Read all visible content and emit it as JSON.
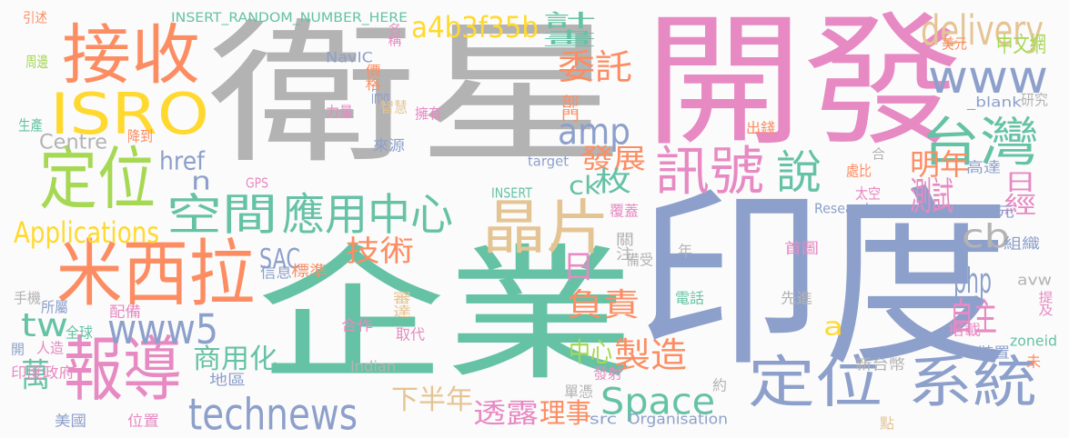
{
  "words": [
    {
      "text": "衛星",
      "color": "#b3b3b3"
    },
    {
      "text": "開發",
      "color": "#e78ac3"
    },
    {
      "text": "企業",
      "color": "#66c2a5"
    },
    {
      "text": "印度",
      "color": "#8da0cb"
    },
    {
      "text": "接收",
      "color": "#fc8d62"
    },
    {
      "text": "ISRO",
      "color": "#ffd92f"
    },
    {
      "text": "定位",
      "color": "#a6d854"
    },
    {
      "text": "米西拉",
      "color": "#fc8d62"
    },
    {
      "text": "報導",
      "color": "#e78ac3"
    },
    {
      "text": "晶片",
      "color": "#e5c494"
    },
    {
      "text": "空間",
      "color": "#66c2a5"
    },
    {
      "text": "應用中心",
      "color": "#66c2a5"
    },
    {
      "text": "訊號",
      "color": "#e78ac3"
    },
    {
      "text": "說",
      "color": "#66c2a5"
    },
    {
      "text": "台灣",
      "color": "#66c2a5"
    },
    {
      "text": "定位",
      "color": "#8da0cb"
    },
    {
      "text": "系統",
      "color": "#8da0cb"
    },
    {
      "text": "www5",
      "color": "#8da0cb"
    },
    {
      "text": "technews",
      "color": "#8da0cb"
    },
    {
      "text": "Space",
      "color": "#66c2a5"
    },
    {
      "text": "delivery",
      "color": "#e5c494"
    },
    {
      "text": "www",
      "color": "#8da0cb"
    },
    {
      "text": "a4b3f35b",
      "color": "#ffd92f"
    },
    {
      "text": "委託",
      "color": "#fc8d62"
    },
    {
      "text": "amp",
      "color": "#8da0cb"
    },
    {
      "text": "計畫",
      "color": "#66c2a5"
    },
    {
      "text": "發展",
      "color": "#fc8d62"
    },
    {
      "text": "技術",
      "color": "#fc8d62"
    },
    {
      "text": "Applications",
      "color": "#ffd92f"
    },
    {
      "text": "Centre",
      "color": "#b3b3b3"
    },
    {
      "text": "href",
      "color": "#8da0cb"
    },
    {
      "text": "n",
      "color": "#8da0cb"
    },
    {
      "text": "tw",
      "color": "#66c2a5"
    },
    {
      "text": "SAC",
      "color": "#8da0cb"
    },
    {
      "text": "商用化",
      "color": "#66c2a5"
    },
    {
      "text": "萬",
      "color": "#66c2a5"
    },
    {
      "text": "負責",
      "color": "#fc8d62"
    },
    {
      "text": "製造",
      "color": "#fc8d62"
    },
    {
      "text": "中心",
      "color": "#a6d854"
    },
    {
      "text": "php",
      "color": "#8da0cb"
    },
    {
      "text": "自主",
      "color": "#e78ac3"
    },
    {
      "text": "測試",
      "color": "#e78ac3"
    },
    {
      "text": "cb",
      "color": "#b3b3b3"
    },
    {
      "text": "日經",
      "color": "#e78ac3"
    },
    {
      "text": "明年",
      "color": "#fc8d62"
    },
    {
      "text": "枚",
      "color": "#66c2a5"
    },
    {
      "text": "ck",
      "color": "#66c2a5"
    },
    {
      "text": "日",
      "color": "#e78ac3"
    },
    {
      "text": "下半年",
      "color": "#e5c494"
    },
    {
      "text": "透露",
      "color": "#e78ac3"
    },
    {
      "text": "理事",
      "color": "#fc8d62"
    },
    {
      "text": "中文網",
      "color": "#a6d854"
    },
    {
      "text": "a",
      "color": "#ffd92f"
    },
    {
      "text": "INSERT_RANDOM_NUMBER_HERE",
      "color": "#66c2a5"
    },
    {
      "text": "引述",
      "color": "#fc8d62"
    },
    {
      "text": "周邊",
      "color": "#a6d854"
    },
    {
      "text": "生產",
      "color": "#66c2a5"
    },
    {
      "text": "降到",
      "color": "#fc8d62"
    },
    {
      "text": "NavIC",
      "color": "#8da0cb"
    },
    {
      "text": "價格",
      "color": "#fc8d62"
    },
    {
      "text": "img",
      "color": "#8da0cb"
    },
    {
      "text": "智慧",
      "color": "#e5c494"
    },
    {
      "text": "名稱",
      "color": "#e78ac3"
    },
    {
      "text": "力量",
      "color": "#e78ac3"
    },
    {
      "text": "擁有",
      "color": "#e78ac3"
    },
    {
      "text": "來源",
      "color": "#8da0cb"
    },
    {
      "text": "GPS",
      "color": "#e78ac3"
    },
    {
      "text": "target",
      "color": "#8da0cb"
    },
    {
      "text": "INSERT",
      "color": "#66c2a5"
    },
    {
      "text": "部門",
      "color": "#fc8d62"
    },
    {
      "text": "美元",
      "color": "#fc8d62"
    },
    {
      "text": "_blank",
      "color": "#8da0cb"
    },
    {
      "text": "研究",
      "color": "#b3b3b3"
    },
    {
      "text": "出錢",
      "color": "#fc8d62"
    },
    {
      "text": "高達",
      "color": "#8da0cb"
    },
    {
      "text": "處比",
      "color": "#fc8d62"
    },
    {
      "text": "太空",
      "color": "#e78ac3"
    },
    {
      "text": "合",
      "color": "#b3b3b3"
    },
    {
      "text": "Research",
      "color": "#8da0cb"
    },
    {
      "text": "覆蓋",
      "color": "#e78ac3"
    },
    {
      "text": "元",
      "color": "#8da0cb"
    },
    {
      "text": "組織",
      "color": "#8da0cb"
    },
    {
      "text": "首圖",
      "color": "#e78ac3"
    },
    {
      "text": "關注",
      "color": "#b3b3b3"
    },
    {
      "text": "備受",
      "color": "#b3b3b3"
    },
    {
      "text": "年",
      "color": "#b3b3b3"
    },
    {
      "text": "標準",
      "color": "#fc8d62"
    },
    {
      "text": "信息",
      "color": "#8da0cb"
    },
    {
      "text": "手機",
      "color": "#b3b3b3"
    },
    {
      "text": "所屬",
      "color": "#8da0cb"
    },
    {
      "text": "配備",
      "color": "#e78ac3"
    },
    {
      "text": "全球",
      "color": "#66c2a5"
    },
    {
      "text": "人造",
      "color": "#e78ac3"
    },
    {
      "text": "開",
      "color": "#8da0cb"
    },
    {
      "text": "印度政府",
      "color": "#e78ac3"
    },
    {
      "text": "地區",
      "color": "#8da0cb"
    },
    {
      "text": "美國",
      "color": "#8da0cb"
    },
    {
      "text": "位置",
      "color": "#e78ac3"
    },
    {
      "text": "審達",
      "color": "#e5c494"
    },
    {
      "text": "合作",
      "color": "#e78ac3"
    },
    {
      "text": "取代",
      "color": "#e78ac3"
    },
    {
      "text": "Indian",
      "color": "#b3b3b3"
    },
    {
      "text": "發射",
      "color": "#e78ac3"
    },
    {
      "text": "單憑",
      "color": "#b3b3b3"
    },
    {
      "text": "src",
      "color": "#8da0cb"
    },
    {
      "text": "Organisation",
      "color": "#8da0cb"
    },
    {
      "text": "電話",
      "color": "#66c2a5"
    },
    {
      "text": "先進",
      "color": "#b3b3b3"
    },
    {
      "text": "約",
      "color": "#b3b3b3"
    },
    {
      "text": "新台幣",
      "color": "#b3b3b3"
    },
    {
      "text": "點",
      "color": "#e5c494"
    },
    {
      "text": "搭載",
      "color": "#e78ac3"
    },
    {
      "text": "裝置",
      "color": "#8da0cb"
    },
    {
      "text": "zoneid",
      "color": "#66c2a5"
    },
    {
      "text": "未",
      "color": "#fc8d62"
    },
    {
      "text": "提及",
      "color": "#e78ac3"
    },
    {
      "text": "avw",
      "color": "#b3b3b3"
    }
  ]
}
